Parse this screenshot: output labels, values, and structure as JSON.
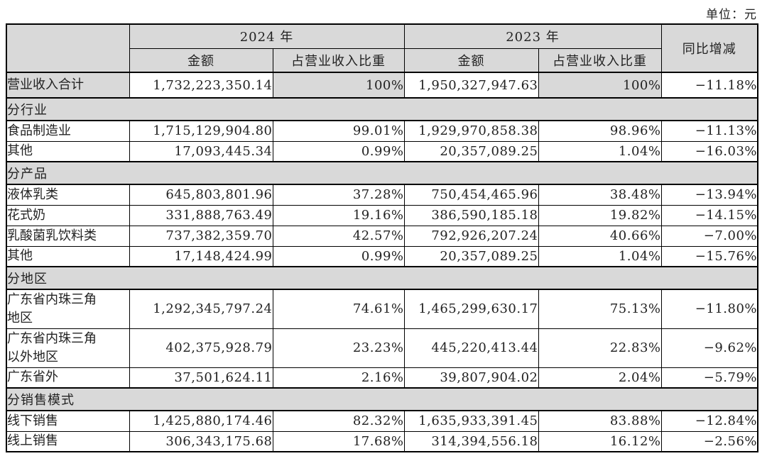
{
  "unit_label": "单位：元",
  "table": {
    "col_headers": {
      "year_2024": "2024 年",
      "year_2023": "2023 年",
      "yoy": "同比增减",
      "amount": "金额",
      "share": "占营业收入比重"
    },
    "rows": [
      {
        "type": "data",
        "highlight": true,
        "label": "营业收入合计",
        "y2024_amount": "1,732,223,350.14",
        "y2024_share": "100%",
        "y2023_amount": "1,950,327,947.63",
        "y2023_share": "100%",
        "yoy": "−11.18%"
      },
      {
        "type": "section",
        "label": "分行业"
      },
      {
        "type": "data",
        "label": "食品制造业",
        "y2024_amount": "1,715,129,904.80",
        "y2024_share": "99.01%",
        "y2023_amount": "1,929,970,858.38",
        "y2023_share": "98.96%",
        "yoy": "−11.13%"
      },
      {
        "type": "data",
        "label": "其他",
        "y2024_amount": "17,093,445.34",
        "y2024_share": "0.99%",
        "y2023_amount": "20,357,089.25",
        "y2023_share": "1.04%",
        "yoy": "−16.03%"
      },
      {
        "type": "section",
        "label": "分产品"
      },
      {
        "type": "data",
        "label": "液体乳类",
        "y2024_amount": "645,803,801.96",
        "y2024_share": "37.28%",
        "y2023_amount": "750,454,465.96",
        "y2023_share": "38.48%",
        "yoy": "−13.94%"
      },
      {
        "type": "data",
        "label": "花式奶",
        "y2024_amount": "331,888,763.49",
        "y2024_share": "19.16%",
        "y2023_amount": "386,590,185.18",
        "y2023_share": "19.82%",
        "yoy": "−14.15%"
      },
      {
        "type": "data",
        "label": "乳酸菌乳饮料类",
        "y2024_amount": "737,382,359.70",
        "y2024_share": "42.57%",
        "y2023_amount": "792,926,207.24",
        "y2023_share": "40.66%",
        "yoy": "−7.00%"
      },
      {
        "type": "data",
        "label": "其他",
        "y2024_amount": "17,148,424.99",
        "y2024_share": "0.99%",
        "y2023_amount": "20,357,089.25",
        "y2023_share": "1.04%",
        "yoy": "−15.76%"
      },
      {
        "type": "section",
        "label": "分地区"
      },
      {
        "type": "data",
        "tall": true,
        "label": "广东省内珠三角\n地区",
        "y2024_amount": "1,292,345,797.24",
        "y2024_share": "74.61%",
        "y2023_amount": "1,465,299,630.17",
        "y2023_share": "75.13%",
        "yoy": "−11.80%"
      },
      {
        "type": "data",
        "tall": true,
        "label": "广东省内珠三角\n以外地区",
        "y2024_amount": "402,375,928.79",
        "y2024_share": "23.23%",
        "y2023_amount": "445,220,413.44",
        "y2023_share": "22.83%",
        "yoy": "−9.62%"
      },
      {
        "type": "data",
        "label": "广东省外",
        "y2024_amount": "37,501,624.11",
        "y2024_share": "2.16%",
        "y2023_amount": "39,807,904.02",
        "y2023_share": "2.04%",
        "yoy": "−5.79%"
      },
      {
        "type": "section",
        "label": "分销售模式"
      },
      {
        "type": "data",
        "label": "线下销售",
        "y2024_amount": "1,425,880,174.46",
        "y2024_share": "82.32%",
        "y2023_amount": "1,635,933,391.45",
        "y2023_share": "83.88%",
        "yoy": "−12.84%"
      },
      {
        "type": "data",
        "label": "线上销售",
        "y2024_amount": "306,343,175.68",
        "y2024_share": "17.68%",
        "y2023_amount": "314,394,556.18",
        "y2023_share": "16.12%",
        "yoy": "−2.56%"
      }
    ]
  }
}
